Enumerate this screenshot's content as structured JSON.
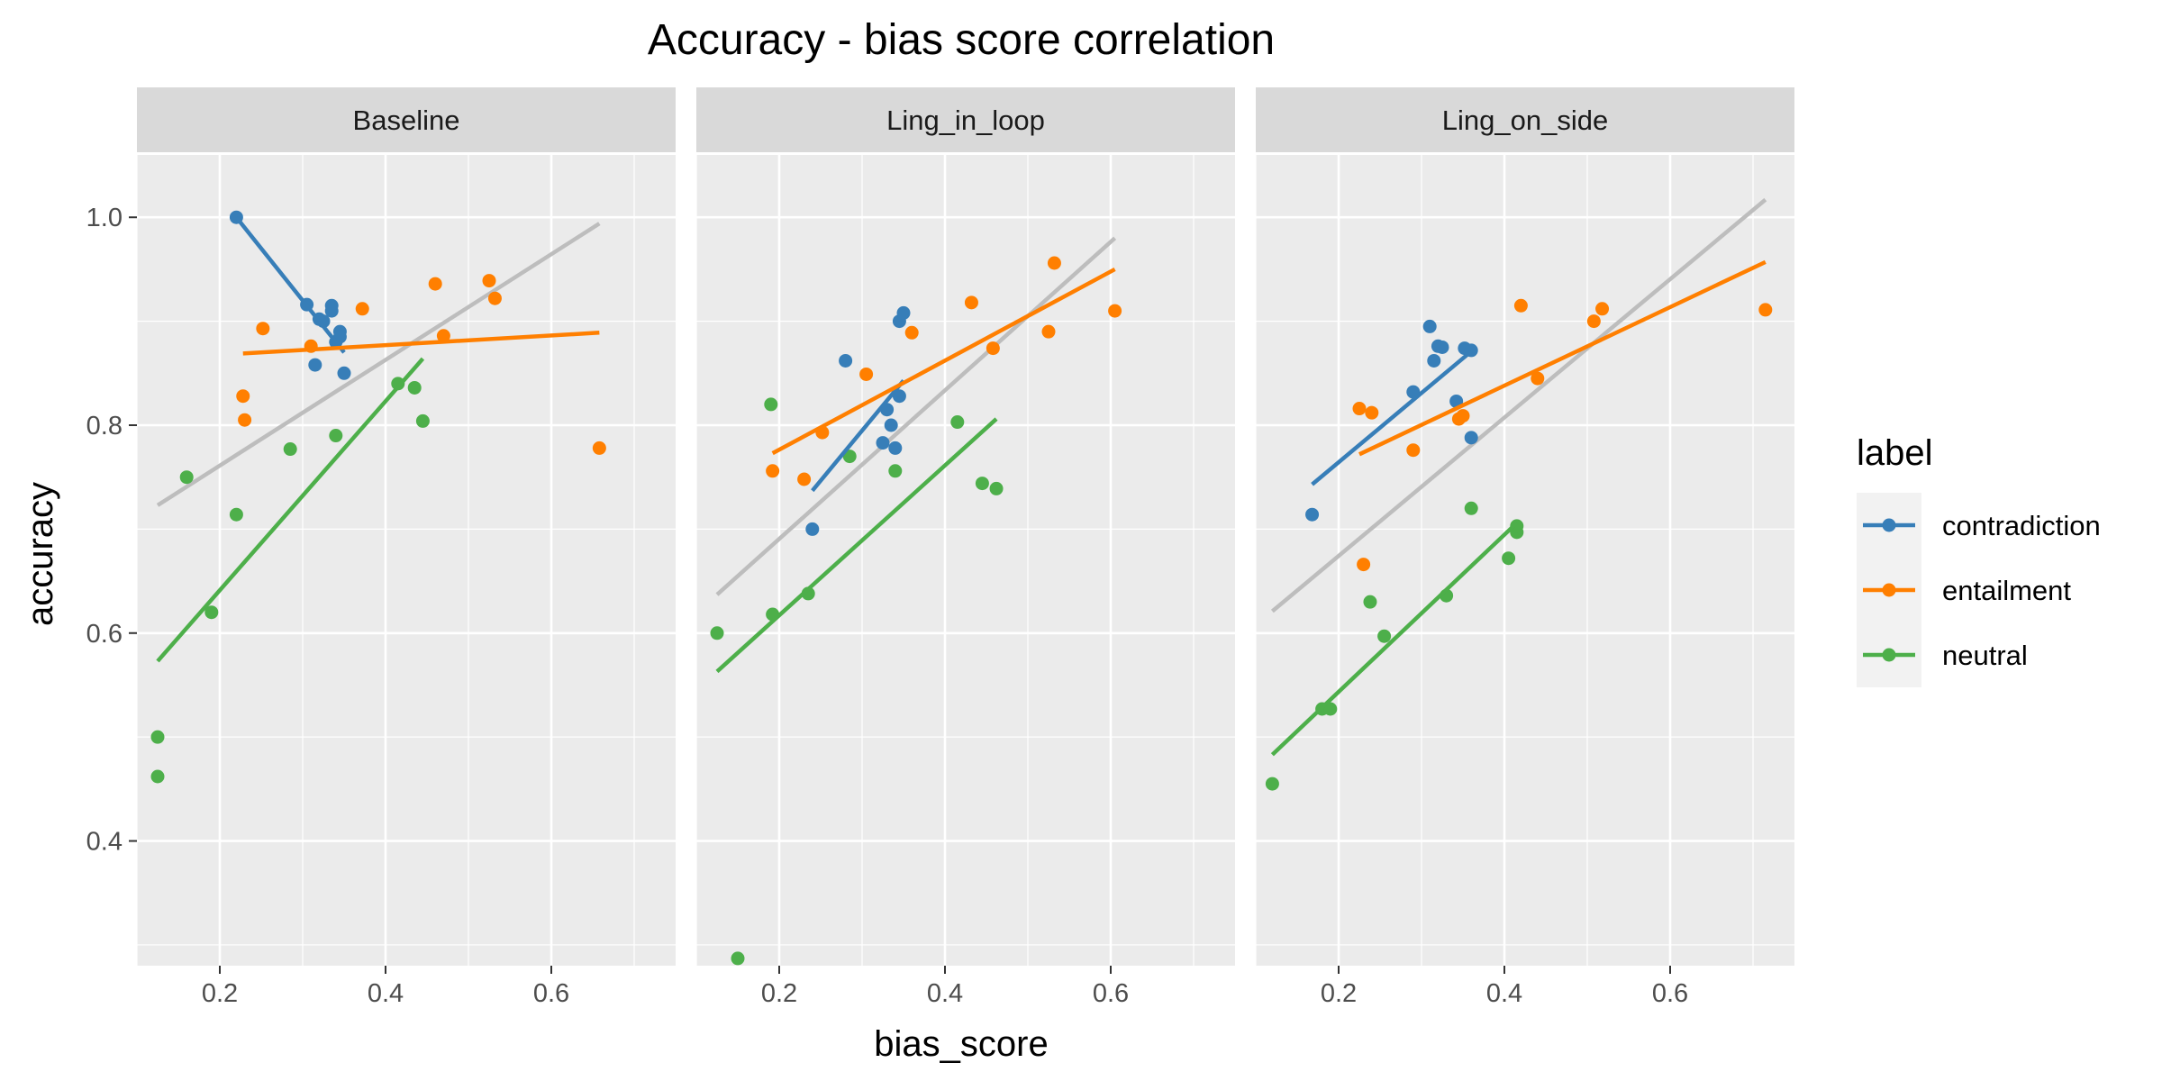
{
  "chart_data": {
    "type": "scatter",
    "title": "Accuracy - bias score correlation",
    "xlabel": "bias_score",
    "ylabel": "accuracy",
    "xlim": [
      0.1,
      0.75
    ],
    "ylim": [
      0.28,
      1.06
    ],
    "x_ticks": [
      0.2,
      0.4,
      0.6
    ],
    "y_ticks": [
      0.4,
      0.6,
      0.8,
      1.0
    ],
    "x_tick_labels": [
      "0.2",
      "0.4",
      "0.6"
    ],
    "y_tick_labels": [
      "0.4",
      "0.6",
      "0.8",
      "1.0"
    ],
    "grid": true,
    "legend": {
      "title": "label",
      "position": "right",
      "entries": [
        "contradiction",
        "entailment",
        "neutral"
      ]
    },
    "colors": {
      "contradiction": "#377eb8",
      "entailment": "#ff7f00",
      "neutral": "#4daf4a",
      "overall_fit": "#bdbdbd",
      "panel_background": "#ebebeb",
      "strip_background": "#d9d9d9",
      "grid": "#ffffff"
    },
    "panels": [
      {
        "name": "Baseline",
        "series": [
          {
            "name": "contradiction",
            "points": [
              [
                0.22,
                1.0
              ],
              [
                0.305,
                0.916
              ],
              [
                0.315,
                0.858
              ],
              [
                0.32,
                0.902
              ],
              [
                0.325,
                0.9
              ],
              [
                0.335,
                0.915
              ],
              [
                0.335,
                0.91
              ],
              [
                0.34,
                0.88
              ],
              [
                0.345,
                0.89
              ],
              [
                0.345,
                0.885
              ],
              [
                0.35,
                0.85
              ]
            ],
            "fit": [
              [
                0.22,
                1.0
              ],
              [
                0.35,
                0.87
              ]
            ]
          },
          {
            "name": "entailment",
            "points": [
              [
                0.228,
                0.828
              ],
              [
                0.23,
                0.805
              ],
              [
                0.252,
                0.893
              ],
              [
                0.31,
                0.876
              ],
              [
                0.372,
                0.912
              ],
              [
                0.46,
                0.936
              ],
              [
                0.47,
                0.886
              ],
              [
                0.525,
                0.939
              ],
              [
                0.532,
                0.922
              ],
              [
                0.658,
                0.778
              ]
            ],
            "fit": [
              [
                0.228,
                0.869
              ],
              [
                0.658,
                0.889
              ]
            ]
          },
          {
            "name": "neutral",
            "points": [
              [
                0.125,
                0.5
              ],
              [
                0.125,
                0.462
              ],
              [
                0.16,
                0.75
              ],
              [
                0.19,
                0.62
              ],
              [
                0.22,
                0.714
              ],
              [
                0.285,
                0.777
              ],
              [
                0.34,
                0.79
              ],
              [
                0.415,
                0.84
              ],
              [
                0.435,
                0.836
              ],
              [
                0.445,
                0.804
              ]
            ],
            "fit": [
              [
                0.125,
                0.573
              ],
              [
                0.445,
                0.864
              ]
            ]
          }
        ],
        "overall_fit": [
          [
            0.125,
            0.723
          ],
          [
            0.658,
            0.994
          ]
        ]
      },
      {
        "name": "Ling_in_loop",
        "series": [
          {
            "name": "contradiction",
            "points": [
              [
                0.24,
                0.7
              ],
              [
                0.28,
                0.862
              ],
              [
                0.325,
                0.783
              ],
              [
                0.33,
                0.815
              ],
              [
                0.335,
                0.8
              ],
              [
                0.34,
                0.778
              ],
              [
                0.345,
                0.828
              ],
              [
                0.345,
                0.9
              ],
              [
                0.35,
                0.908
              ]
            ],
            "fit": [
              [
                0.24,
                0.737
              ],
              [
                0.35,
                0.843
              ]
            ]
          },
          {
            "name": "entailment",
            "points": [
              [
                0.192,
                0.756
              ],
              [
                0.23,
                0.748
              ],
              [
                0.252,
                0.793
              ],
              [
                0.305,
                0.849
              ],
              [
                0.36,
                0.889
              ],
              [
                0.432,
                0.918
              ],
              [
                0.458,
                0.874
              ],
              [
                0.525,
                0.89
              ],
              [
                0.532,
                0.956
              ],
              [
                0.605,
                0.91
              ]
            ],
            "fit": [
              [
                0.192,
                0.773
              ],
              [
                0.605,
                0.95
              ]
            ]
          },
          {
            "name": "neutral",
            "points": [
              [
                0.125,
                0.6
              ],
              [
                0.15,
                0.287
              ],
              [
                0.19,
                0.82
              ],
              [
                0.192,
                0.618
              ],
              [
                0.235,
                0.638
              ],
              [
                0.285,
                0.77
              ],
              [
                0.34,
                0.756
              ],
              [
                0.415,
                0.803
              ],
              [
                0.445,
                0.744
              ],
              [
                0.462,
                0.739
              ]
            ],
            "fit": [
              [
                0.125,
                0.563
              ],
              [
                0.462,
                0.806
              ]
            ]
          }
        ],
        "overall_fit": [
          [
            0.125,
            0.637
          ],
          [
            0.605,
            0.98
          ]
        ]
      },
      {
        "name": "Ling_on_side",
        "series": [
          {
            "name": "contradiction",
            "points": [
              [
                0.168,
                0.714
              ],
              [
                0.29,
                0.832
              ],
              [
                0.31,
                0.895
              ],
              [
                0.315,
                0.862
              ],
              [
                0.32,
                0.876
              ],
              [
                0.325,
                0.875
              ],
              [
                0.342,
                0.823
              ],
              [
                0.352,
                0.874
              ],
              [
                0.36,
                0.872
              ],
              [
                0.36,
                0.788
              ]
            ],
            "fit": [
              [
                0.168,
                0.743
              ],
              [
                0.36,
                0.871
              ]
            ]
          },
          {
            "name": "entailment",
            "points": [
              [
                0.225,
                0.816
              ],
              [
                0.23,
                0.666
              ],
              [
                0.24,
                0.812
              ],
              [
                0.29,
                0.776
              ],
              [
                0.345,
                0.806
              ],
              [
                0.35,
                0.809
              ],
              [
                0.42,
                0.915
              ],
              [
                0.44,
                0.845
              ],
              [
                0.508,
                0.9
              ],
              [
                0.518,
                0.912
              ],
              [
                0.715,
                0.911
              ]
            ],
            "fit": [
              [
                0.225,
                0.772
              ],
              [
                0.715,
                0.957
              ]
            ]
          },
          {
            "name": "neutral",
            "points": [
              [
                0.12,
                0.455
              ],
              [
                0.18,
                0.527
              ],
              [
                0.19,
                0.527
              ],
              [
                0.238,
                0.63
              ],
              [
                0.255,
                0.597
              ],
              [
                0.33,
                0.636
              ],
              [
                0.36,
                0.72
              ],
              [
                0.405,
                0.672
              ],
              [
                0.415,
                0.697
              ],
              [
                0.415,
                0.703
              ]
            ],
            "fit": [
              [
                0.12,
                0.483
              ],
              [
                0.415,
                0.706
              ]
            ]
          }
        ],
        "overall_fit": [
          [
            0.12,
            0.621
          ],
          [
            0.715,
            1.017
          ]
        ]
      }
    ]
  }
}
